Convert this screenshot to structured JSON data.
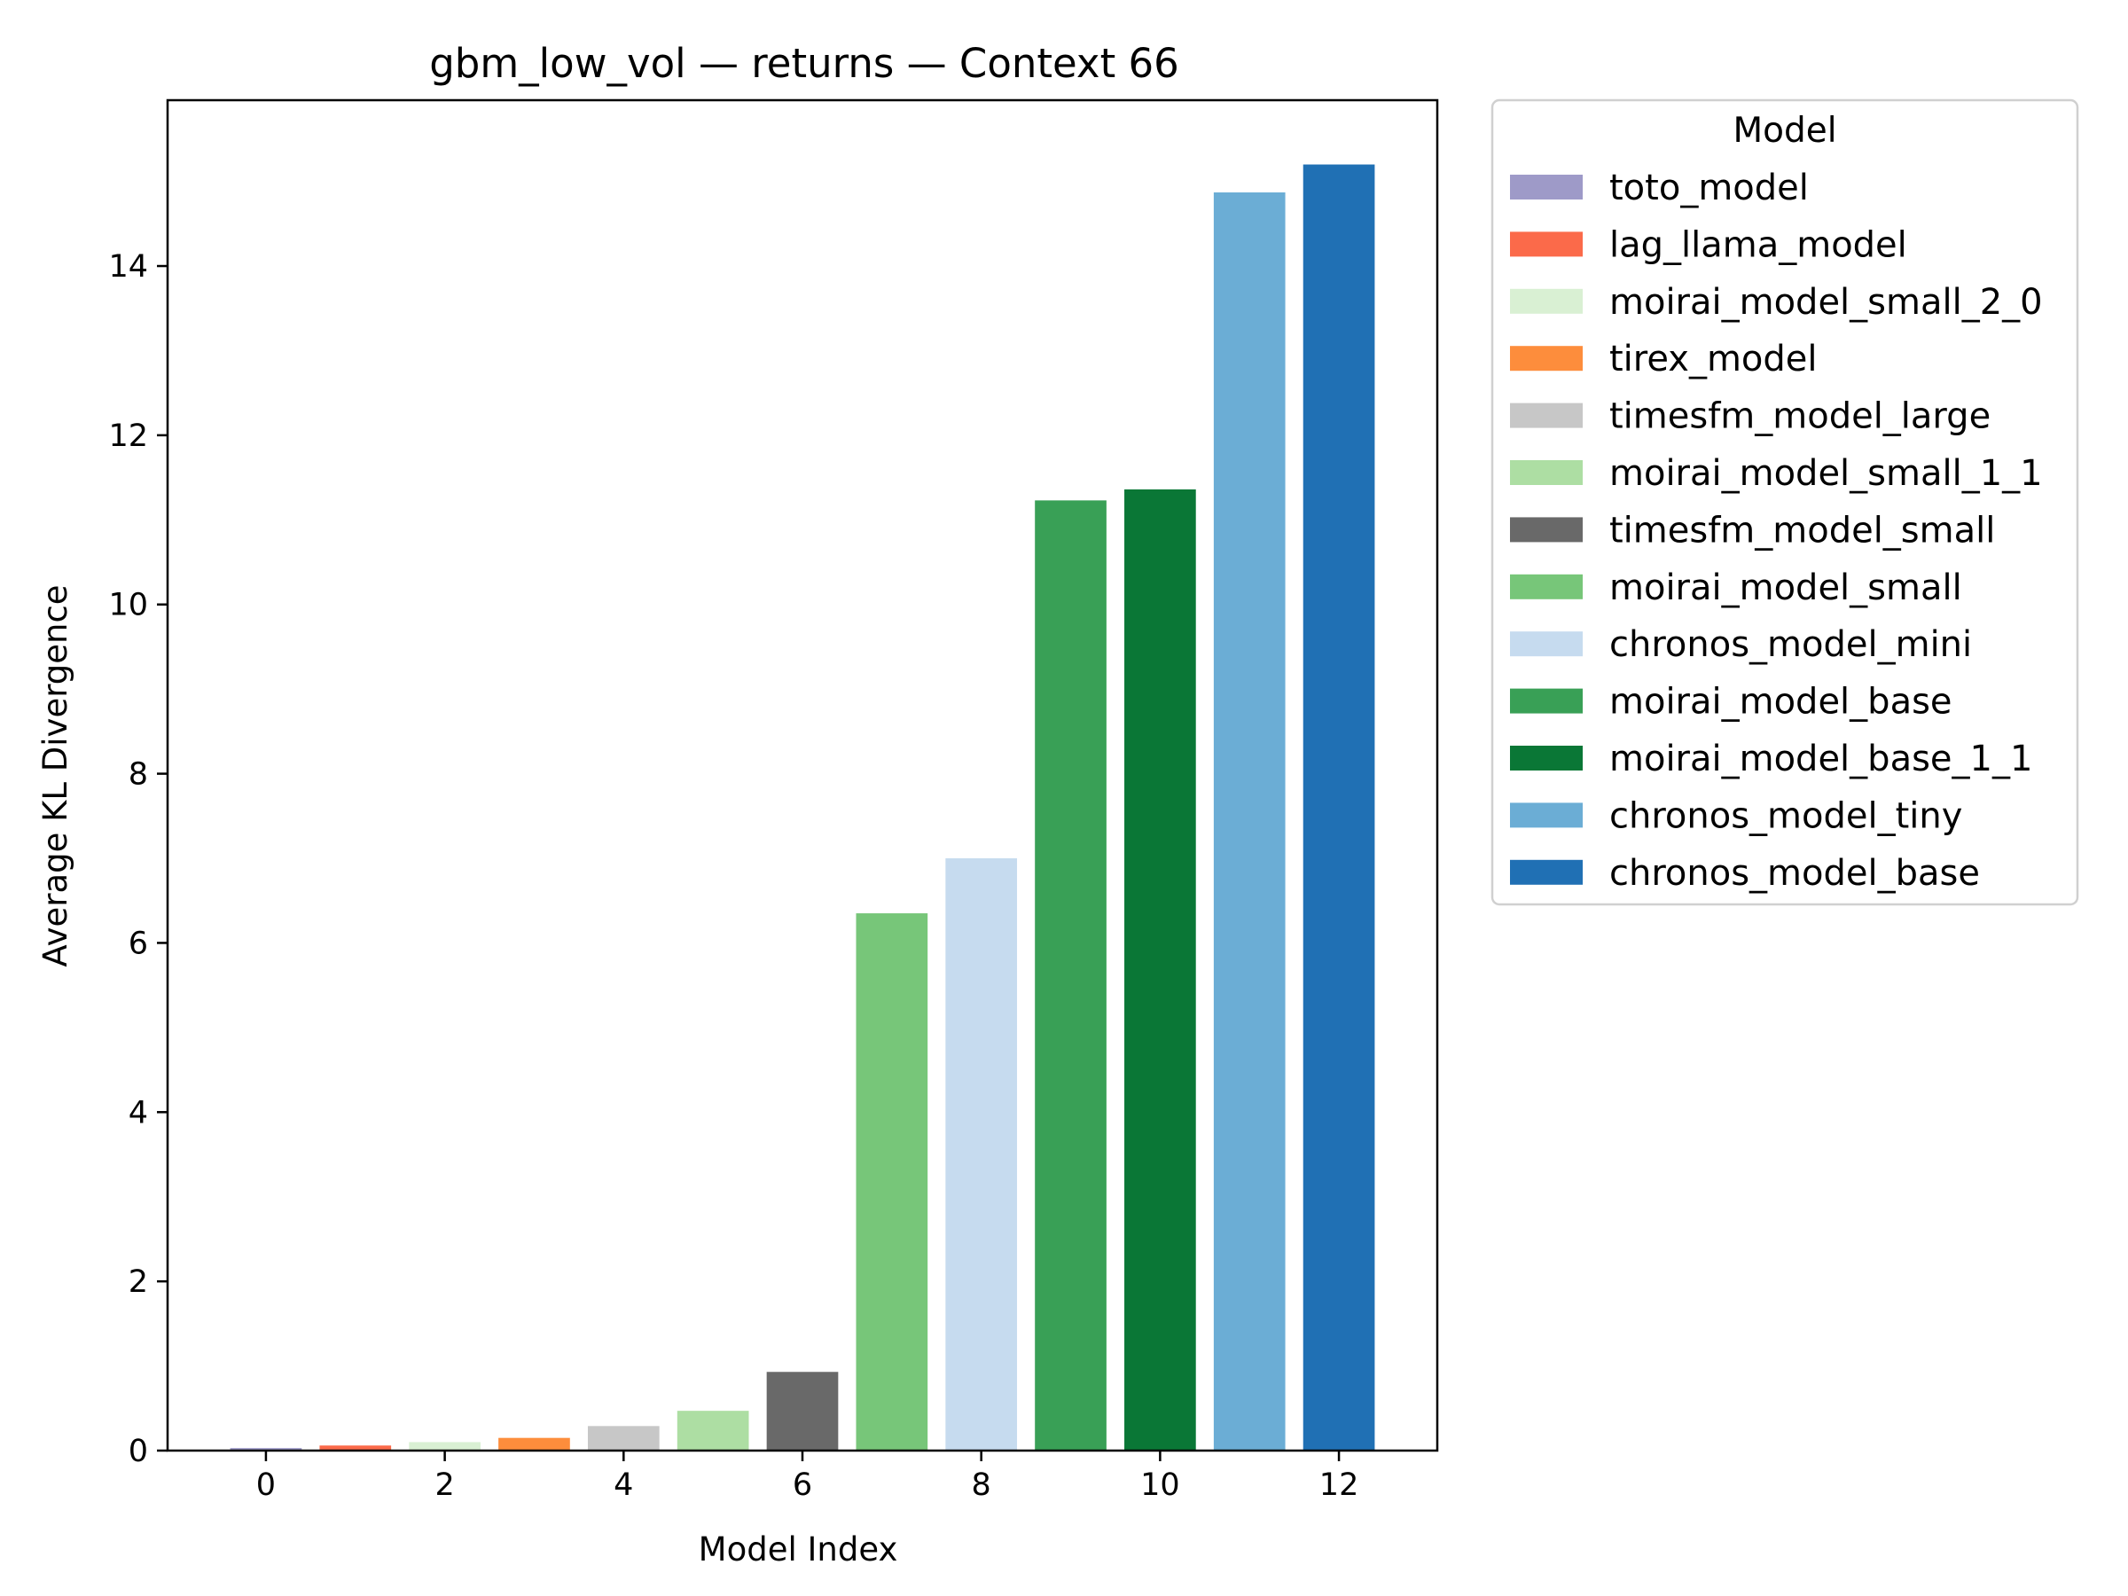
{
  "chart_data": {
    "type": "bar",
    "title": "gbm_low_vol — returns — Context 66",
    "xlabel": "Model Index",
    "ylabel": "Average KL Divergence",
    "xlim": [
      -1.1,
      13.1
    ],
    "ylim": [
      0,
      15.96
    ],
    "xticks": [
      0,
      2,
      4,
      6,
      8,
      10,
      12
    ],
    "yticks": [
      0,
      2,
      4,
      6,
      8,
      10,
      12,
      14
    ],
    "grid": false,
    "legend": {
      "title": "Model",
      "placement": "outside-top-right"
    },
    "categories": [
      0,
      1,
      2,
      3,
      4,
      5,
      6,
      7,
      8,
      9,
      10,
      11,
      12
    ],
    "series": [
      {
        "name": "toto_model",
        "index": 0,
        "value": 0.03,
        "color": "#9e9ac8"
      },
      {
        "name": "lag_llama_model",
        "index": 1,
        "value": 0.06,
        "color": "#fb6a4a"
      },
      {
        "name": "moirai_model_small_2_0",
        "index": 2,
        "value": 0.1,
        "color": "#d9f0d3"
      },
      {
        "name": "tirex_model",
        "index": 3,
        "value": 0.15,
        "color": "#fd8d3c"
      },
      {
        "name": "timesfm_model_large",
        "index": 4,
        "value": 0.29,
        "color": "#c7c7c7"
      },
      {
        "name": "moirai_model_small_1_1",
        "index": 5,
        "value": 0.47,
        "color": "#addea3"
      },
      {
        "name": "timesfm_model_small",
        "index": 6,
        "value": 0.93,
        "color": "#696969"
      },
      {
        "name": "moirai_model_small",
        "index": 7,
        "value": 6.35,
        "color": "#77c679"
      },
      {
        "name": "chronos_model_mini",
        "index": 8,
        "value": 7.0,
        "color": "#c6dbef"
      },
      {
        "name": "moirai_model_base",
        "index": 9,
        "value": 11.23,
        "color": "#39a056"
      },
      {
        "name": "moirai_model_base_1_1",
        "index": 10,
        "value": 11.36,
        "color": "#0a7736"
      },
      {
        "name": "chronos_model_tiny",
        "index": 11,
        "value": 14.87,
        "color": "#6badd5"
      },
      {
        "name": "chronos_model_base",
        "index": 12,
        "value": 15.2,
        "color": "#2070b4"
      }
    ]
  }
}
